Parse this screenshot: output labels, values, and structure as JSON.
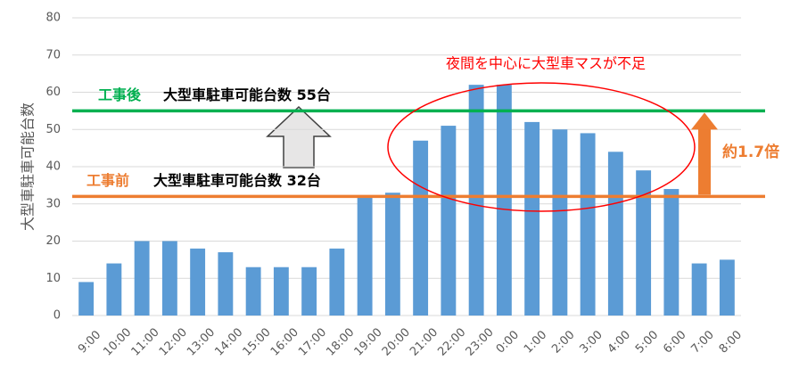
{
  "chart_data": {
    "type": "bar",
    "y_label": "大型車駐車可能台数",
    "categories": [
      "9:00",
      "10:00",
      "11:00",
      "12:00",
      "13:00",
      "14:00",
      "15:00",
      "16:00",
      "17:00",
      "18:00",
      "19:00",
      "20:00",
      "21:00",
      "22:00",
      "23:00",
      "0:00",
      "1:00",
      "2:00",
      "3:00",
      "4:00",
      "5:00",
      "6:00",
      "7:00",
      "8:00"
    ],
    "values": [
      9,
      14,
      20,
      20,
      18,
      17,
      13,
      13,
      13,
      18,
      32,
      33,
      47,
      51,
      62,
      62,
      52,
      50,
      49,
      44,
      39,
      34,
      14,
      15
    ],
    "color": "#5b9bd5",
    "ylim": [
      0,
      80
    ],
    "yticks": [
      0,
      10,
      20,
      30,
      40,
      50,
      60,
      70,
      80
    ],
    "grid": true,
    "reference_lines": [
      {
        "value": 55,
        "color": "#00b050",
        "label": "工事後",
        "text": "大型車駐車可能台数 55台"
      },
      {
        "value": 32,
        "color": "#ed7d31",
        "label": "工事前",
        "text": "大型車駐車可能台数 32台"
      }
    ],
    "annotations": [
      {
        "text": "夜間を中心に大型車マスが不足",
        "color": "#ff0000"
      },
      {
        "text": "約1.7倍",
        "color": "#ed7d31"
      }
    ]
  }
}
